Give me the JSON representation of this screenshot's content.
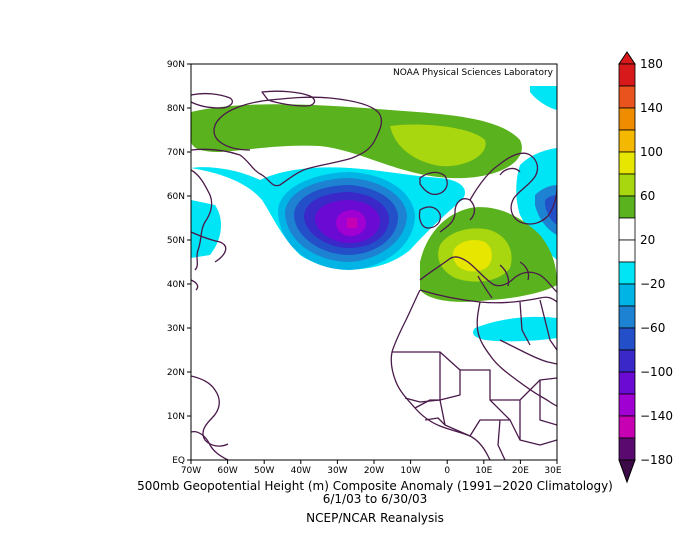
{
  "credit": "NOAA Physical Sciences Laboratory",
  "caption": {
    "line1": "500mb Geopotential Height (m) Composite Anomaly (1991−2020 Climatology)",
    "line2": "6/1/03   to 6/30/03",
    "line3": "NCEP/NCAR Reanalysis"
  },
  "lat_ticks": [
    "90N",
    "80N",
    "70N",
    "60N",
    "50N",
    "40N",
    "30N",
    "20N",
    "10N",
    "EQ"
  ],
  "lon_ticks": [
    "70W",
    "60W",
    "50W",
    "40W",
    "30W",
    "20W",
    "10W",
    "0",
    "10E",
    "20E",
    "30E"
  ],
  "colorbar": {
    "labels": [
      "180",
      "140",
      "100",
      "60",
      "20",
      "−20",
      "−60",
      "−100",
      "−140",
      "−180"
    ],
    "colors": [
      "#d7191c",
      "#e8531e",
      "#f08c00",
      "#f5b800",
      "#e6e600",
      "#a8d60f",
      "#5ab21e",
      "#ffffff",
      "#ffffff",
      "#00e5f5",
      "#00b5e6",
      "#1e82d2",
      "#2350c8",
      "#3a28c8",
      "#6a0ad2",
      "#a000d2",
      "#c800b4",
      "#5a0a6e"
    ]
  },
  "anomaly_colors": {
    "green_light": "#a8d60f",
    "green": "#5ab21e",
    "yellow": "#e6e600",
    "cyan": "#00e5f5",
    "blue_light": "#00b5e6",
    "blue": "#1e82d2",
    "blue_dark": "#2350c8",
    "indigo": "#3a28c8",
    "violet": "#6a0ad2",
    "purple": "#a000d2",
    "magenta": "#c800b4",
    "coast": "#4a1a4a"
  }
}
